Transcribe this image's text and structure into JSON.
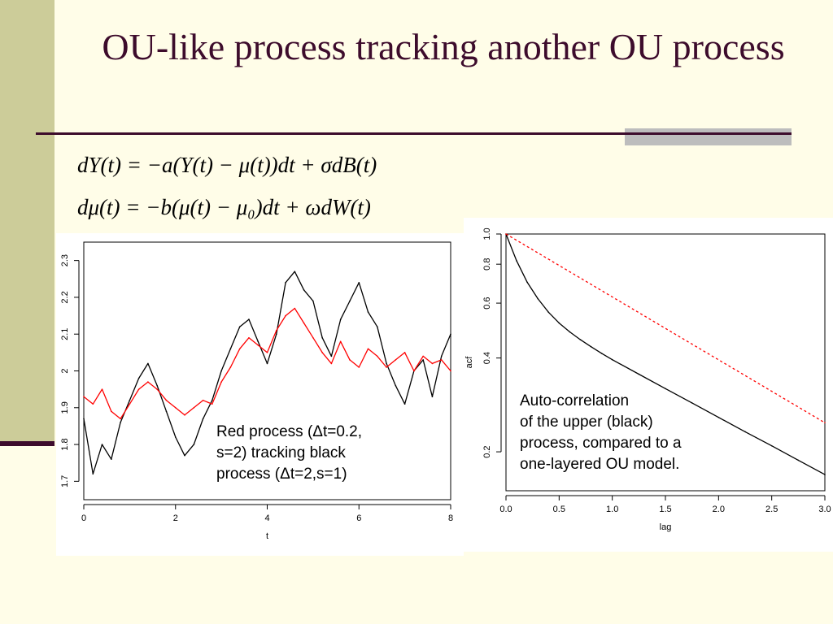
{
  "slide": {
    "title": "OU-like process tracking another OU process",
    "equations": [
      "dY(t) = −a(Y(t) − μ(t))dt + σdB(t)",
      "dμ(t) = −b(μ(t) − μ₀)dt + ωdW(t)"
    ],
    "note_left": [
      "Red process (Δt=0.2,",
      "s=2) tracking black",
      "process (Δt=2,s=1)"
    ],
    "note_right": [
      "Auto-correlation",
      "of the upper (black)",
      "process, compared to a",
      "one-layered OU model."
    ]
  },
  "colors": {
    "black_series": "#000000",
    "red_series": "#ff0000",
    "title": "#3d0c2c",
    "band": "#cccc99"
  },
  "chart_data": [
    {
      "type": "line",
      "xlabel": "t",
      "ylabel": "",
      "xlim": [
        0,
        8
      ],
      "ylim": [
        1.65,
        2.35
      ],
      "xticks": [
        0,
        2,
        4,
        6,
        8
      ],
      "yticks": [
        1.7,
        1.8,
        1.9,
        2.0,
        2.1,
        2.2,
        2.3
      ],
      "series": [
        {
          "color": "#000000",
          "x": [
            0,
            0.2,
            0.4,
            0.6,
            0.8,
            1.0,
            1.2,
            1.4,
            1.6,
            1.8,
            2.0,
            2.2,
            2.4,
            2.6,
            2.8,
            3.0,
            3.2,
            3.4,
            3.6,
            3.8,
            4.0,
            4.2,
            4.4,
            4.6,
            4.8,
            5.0,
            5.2,
            5.4,
            5.6,
            5.8,
            6.0,
            6.2,
            6.4,
            6.6,
            6.8,
            7.0,
            7.2,
            7.4,
            7.6,
            7.8,
            8.0
          ],
          "values": [
            1.87,
            1.72,
            1.8,
            1.76,
            1.86,
            1.92,
            1.98,
            2.02,
            1.96,
            1.89,
            1.82,
            1.77,
            1.8,
            1.87,
            1.92,
            2.0,
            2.06,
            2.12,
            2.14,
            2.08,
            2.02,
            2.1,
            2.24,
            2.27,
            2.22,
            2.19,
            2.09,
            2.04,
            2.14,
            2.19,
            2.24,
            2.16,
            2.12,
            2.02,
            1.96,
            1.91,
            2.0,
            2.03,
            1.93,
            2.04,
            2.1
          ]
        },
        {
          "color": "#ff0000",
          "x": [
            0,
            0.2,
            0.4,
            0.6,
            0.8,
            1.0,
            1.2,
            1.4,
            1.6,
            1.8,
            2.0,
            2.2,
            2.4,
            2.6,
            2.8,
            3.0,
            3.2,
            3.4,
            3.6,
            3.8,
            4.0,
            4.2,
            4.4,
            4.6,
            4.8,
            5.0,
            5.2,
            5.4,
            5.6,
            5.8,
            6.0,
            6.2,
            6.4,
            6.6,
            6.8,
            7.0,
            7.2,
            7.4,
            7.6,
            7.8,
            8.0
          ],
          "values": [
            1.93,
            1.91,
            1.95,
            1.89,
            1.87,
            1.91,
            1.95,
            1.97,
            1.95,
            1.92,
            1.9,
            1.88,
            1.9,
            1.92,
            1.91,
            1.97,
            2.01,
            2.06,
            2.09,
            2.07,
            2.05,
            2.11,
            2.15,
            2.17,
            2.13,
            2.09,
            2.05,
            2.02,
            2.08,
            2.03,
            2.01,
            2.06,
            2.04,
            2.01,
            2.03,
            2.05,
            2.0,
            2.04,
            2.02,
            2.03,
            2.0
          ]
        }
      ]
    },
    {
      "type": "line",
      "xlabel": "lag",
      "ylabel": "acf",
      "xlim": [
        0,
        3
      ],
      "ylim": [
        0.15,
        1.0
      ],
      "yscale": "log",
      "xticks": [
        0.0,
        0.5,
        1.0,
        1.5,
        2.0,
        2.5,
        3.0
      ],
      "xticklabels": [
        "0.0",
        "0.5",
        "1.0",
        "1.5",
        "2.0",
        "2.5",
        "3.0"
      ],
      "yticks": [
        0.2,
        0.4,
        0.6,
        0.8,
        1.0
      ],
      "yticklabels": [
        "0.2",
        "0.4",
        "0.6",
        "0.8",
        "1.0"
      ],
      "series": [
        {
          "color": "#000000",
          "style": "solid",
          "x": [
            0.0,
            0.1,
            0.2,
            0.3,
            0.4,
            0.5,
            0.6,
            0.7,
            0.8,
            0.9,
            1.0,
            1.25,
            1.5,
            1.75,
            2.0,
            2.25,
            2.5,
            2.75,
            3.0
          ],
          "values": [
            1.0,
            0.82,
            0.7,
            0.62,
            0.561,
            0.518,
            0.485,
            0.458,
            0.435,
            0.414,
            0.395,
            0.355,
            0.319,
            0.287,
            0.258,
            0.232,
            0.209,
            0.188,
            0.169
          ]
        },
        {
          "color": "#ff0000",
          "style": "dashed",
          "x": [
            0.0,
            3.0
          ],
          "values": [
            1.0,
            0.248
          ]
        }
      ]
    }
  ]
}
